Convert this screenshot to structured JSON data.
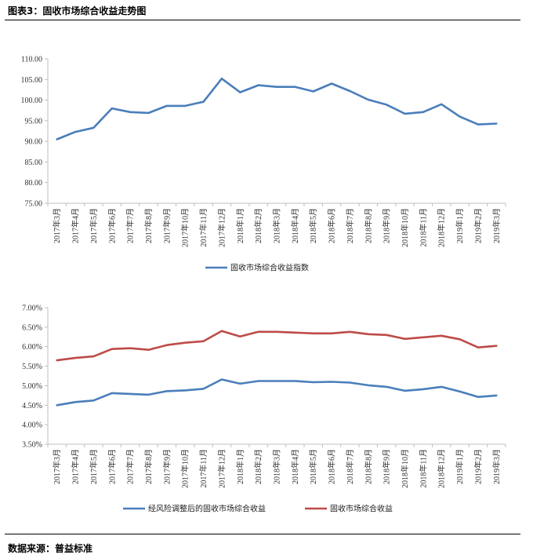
{
  "figure_title": "图表3：固收市场综合收益走势图",
  "source": "数据来源：普益标准",
  "colors": {
    "blue": "#4a7ebb",
    "red": "#be4b48",
    "axis": "#bfbfbf"
  },
  "chart_data": [
    {
      "type": "line",
      "categories": [
        "2017年3月",
        "2017年4月",
        "2017年5月",
        "2017年6月",
        "2017年7月",
        "2017年8月",
        "2017年9月",
        "2017年10月",
        "2017年11月",
        "2017年12月",
        "2018年1月",
        "2018年2月",
        "2018年3月",
        "2018年4月",
        "2018年5月",
        "2018年6月",
        "2018年7月",
        "2018年8月",
        "2018年9月",
        "2018年10月",
        "2018年11月",
        "2018年12月",
        "2019年1月",
        "2019年2月",
        "2019年3月"
      ],
      "yticks": [
        "75.00",
        "80.00",
        "85.00",
        "90.00",
        "95.00",
        "100.00",
        "105.00",
        "110.00"
      ],
      "ylim": [
        75,
        110
      ],
      "series": [
        {
          "name": "固收市场综合收益指数",
          "color": "#4a7ebb",
          "values": [
            90.5,
            92.3,
            93.3,
            98.0,
            97.1,
            96.9,
            98.6,
            98.6,
            99.6,
            105.2,
            101.9,
            103.6,
            103.2,
            103.2,
            102.1,
            104.0,
            102.2,
            100.1,
            98.9,
            96.7,
            97.1,
            99.0,
            96.0,
            94.1,
            94.3
          ]
        }
      ],
      "legend": "bottom"
    },
    {
      "type": "line",
      "categories": [
        "2017年3月",
        "2017年4月",
        "2017年5月",
        "2017年6月",
        "2017年7月",
        "2017年8月",
        "2017年9月",
        "2017年10月",
        "2017年11月",
        "2017年12月",
        "2018年1月",
        "2018年2月",
        "2018年3月",
        "2018年4月",
        "2018年5月",
        "2018年6月",
        "2018年7月",
        "2018年8月",
        "2018年9月",
        "2018年10月",
        "2018年11月",
        "2018年12月",
        "2019年1月",
        "2019年2月",
        "2019年3月"
      ],
      "yticks": [
        "3.50%",
        "4.00%",
        "4.50%",
        "5.00%",
        "5.50%",
        "6.00%",
        "6.50%",
        "7.00%"
      ],
      "ylim": [
        3.5,
        7.0
      ],
      "series": [
        {
          "name": "经风险调整后的固收市场综合收益",
          "color": "#4a7ebb",
          "values": [
            4.5,
            4.58,
            4.62,
            4.81,
            4.79,
            4.77,
            4.86,
            4.88,
            4.92,
            5.16,
            5.05,
            5.12,
            5.12,
            5.12,
            5.09,
            5.1,
            5.08,
            5.01,
            4.97,
            4.87,
            4.91,
            4.97,
            4.85,
            4.71,
            4.75
          ]
        },
        {
          "name": "固收市场综合收益",
          "color": "#be4b48",
          "values": [
            5.65,
            5.71,
            5.75,
            5.94,
            5.96,
            5.92,
            6.04,
            6.1,
            6.14,
            6.4,
            6.26,
            6.38,
            6.38,
            6.36,
            6.34,
            6.34,
            6.38,
            6.32,
            6.3,
            6.2,
            6.24,
            6.28,
            6.19,
            5.98,
            6.02
          ]
        }
      ],
      "legend": "bottom"
    }
  ]
}
